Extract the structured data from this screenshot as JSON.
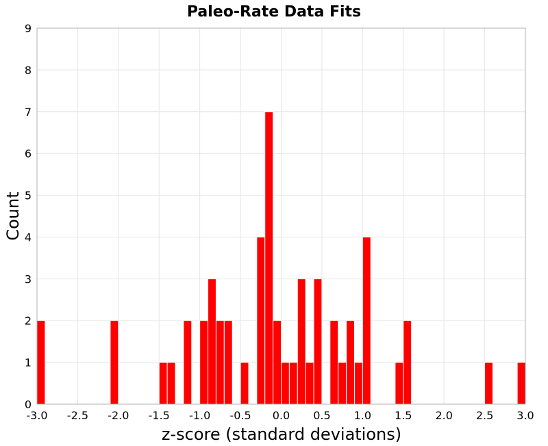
{
  "chart_data": {
    "type": "bar",
    "title": "Paleo-Rate Data Fits",
    "xlabel": "z-score (standard deviations)",
    "ylabel": "Count",
    "xlim": [
      -3.0,
      3.0
    ],
    "ylim": [
      0,
      9
    ],
    "bin_width": 0.1,
    "grid": true,
    "bar_color": "#ff0000",
    "x_ticks": [
      "-3.0",
      "-2.5",
      "-2.0",
      "-1.5",
      "-1.0",
      "-0.5",
      "0.0",
      "0.5",
      "1.0",
      "1.5",
      "2.0",
      "2.5",
      "3.0"
    ],
    "y_ticks": [
      "0",
      "1",
      "2",
      "3",
      "4",
      "5",
      "6",
      "7",
      "8",
      "9"
    ],
    "bins": [
      {
        "x": -3.0,
        "count": 2
      },
      {
        "x": -2.1,
        "count": 2
      },
      {
        "x": -1.5,
        "count": 1
      },
      {
        "x": -1.4,
        "count": 1
      },
      {
        "x": -1.2,
        "count": 2
      },
      {
        "x": -1.0,
        "count": 2
      },
      {
        "x": -0.9,
        "count": 3
      },
      {
        "x": -0.8,
        "count": 2
      },
      {
        "x": -0.7,
        "count": 2
      },
      {
        "x": -0.5,
        "count": 1
      },
      {
        "x": -0.3,
        "count": 4
      },
      {
        "x": -0.2,
        "count": 7
      },
      {
        "x": -0.1,
        "count": 2
      },
      {
        "x": 0.0,
        "count": 1
      },
      {
        "x": 0.1,
        "count": 1
      },
      {
        "x": 0.2,
        "count": 3
      },
      {
        "x": 0.3,
        "count": 1
      },
      {
        "x": 0.4,
        "count": 3
      },
      {
        "x": 0.6,
        "count": 2
      },
      {
        "x": 0.7,
        "count": 1
      },
      {
        "x": 0.8,
        "count": 2
      },
      {
        "x": 0.9,
        "count": 1
      },
      {
        "x": 1.0,
        "count": 4
      },
      {
        "x": 1.4,
        "count": 1
      },
      {
        "x": 1.5,
        "count": 2
      },
      {
        "x": 2.5,
        "count": 1
      },
      {
        "x": 2.9,
        "count": 1
      }
    ]
  }
}
